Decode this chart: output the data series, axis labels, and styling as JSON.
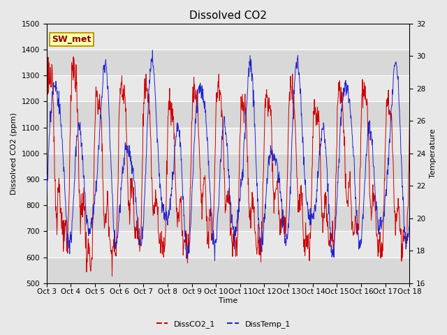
{
  "title": "Dissolved CO2",
  "xlabel": "Time",
  "ylabel_left": "Dissolved CO2 (ppm)",
  "ylabel_right": "Temperature",
  "annotation": "SW_met",
  "legend": [
    "DissCO2_1",
    "DissTemp_1"
  ],
  "color_co2": "#cc0000",
  "color_temp": "#2222cc",
  "ylim_left": [
    500,
    1500
  ],
  "ylim_right": [
    16,
    32
  ],
  "xtick_labels": [
    "Oct 3",
    "Oct 4",
    "Oct 5",
    "Oct 6",
    "Oct 7",
    "Oct 8",
    "Oct 9",
    "Oct 10",
    "Oct 11",
    "Oct 12",
    "Oct 13",
    "Oct 14",
    "Oct 15",
    "Oct 16",
    "Oct 17",
    "Oct 18"
  ],
  "yticks_left": [
    500,
    600,
    700,
    800,
    900,
    1000,
    1100,
    1200,
    1300,
    1400,
    1500
  ],
  "yticks_right": [
    16,
    18,
    20,
    22,
    24,
    26,
    28,
    30,
    32
  ],
  "fig_width": 6.4,
  "fig_height": 4.8,
  "dpi": 100,
  "title_fontsize": 11,
  "axis_fontsize": 8,
  "tick_fontsize": 7.5,
  "legend_fontsize": 8,
  "annot_fontsize": 9,
  "bg_color": "#e8e8e8",
  "grid_color": "#ffffff",
  "band_colors": [
    "#d8d8d8",
    "#e8e8e8"
  ]
}
